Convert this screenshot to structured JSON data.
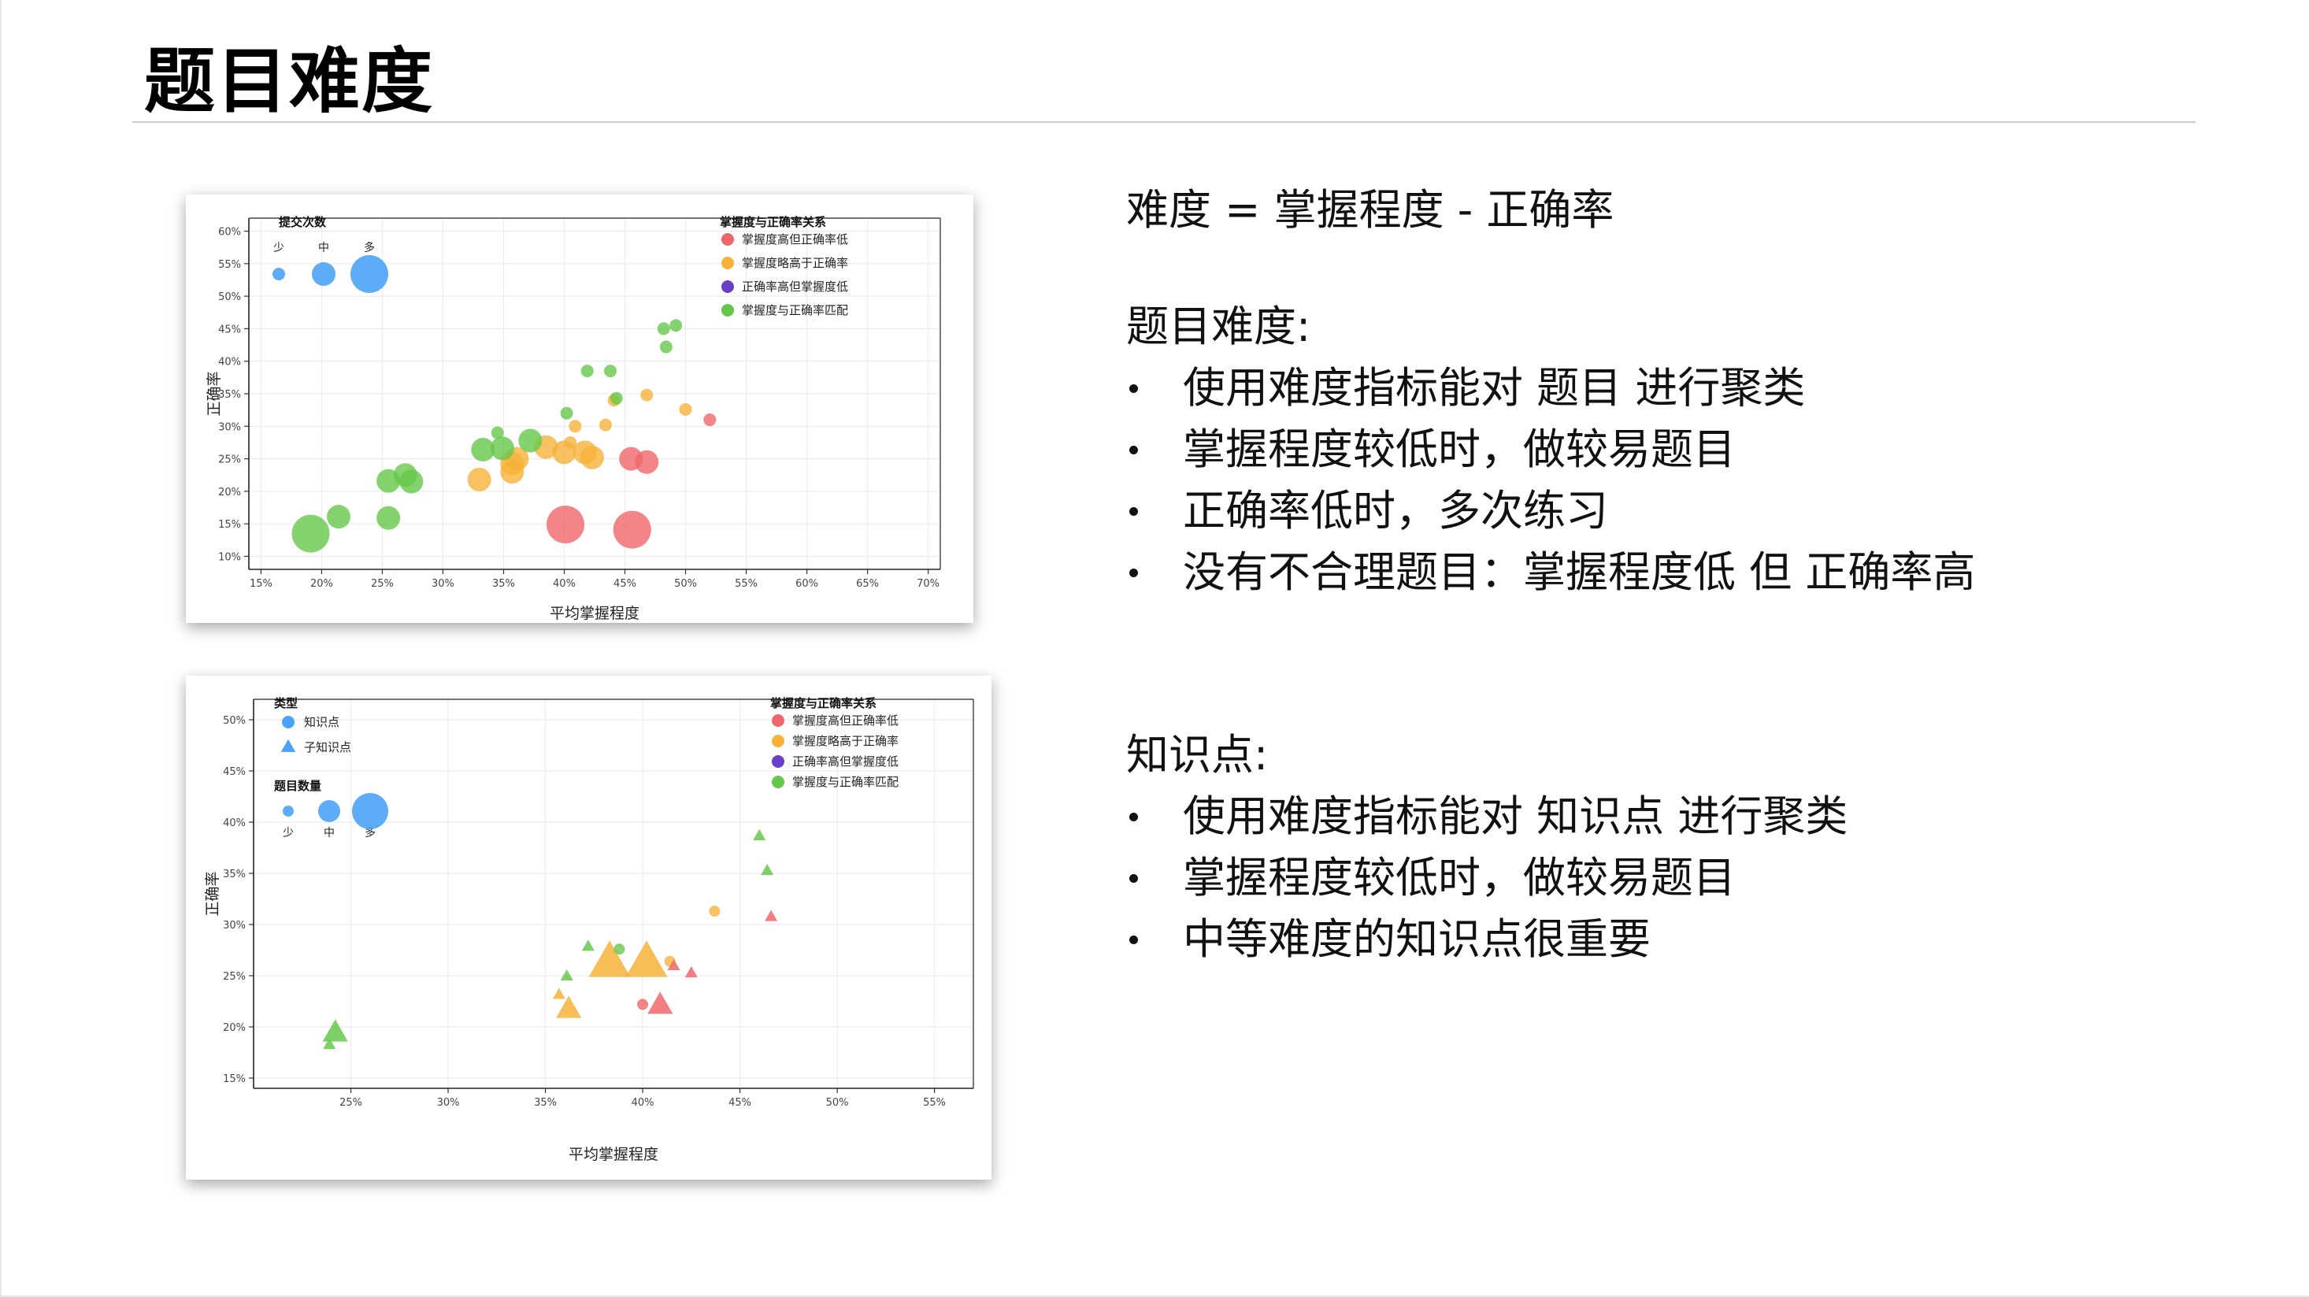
{
  "slide": {
    "title": "题目难度"
  },
  "text": {
    "formula": "难度 = 掌握程度 - 正确率",
    "difficulty_heading": "题目难度:",
    "difficulty_bullets": [
      "使用难度指标能对 题目 进行聚类",
      "掌握程度较低时，做较易题目",
      "正确率低时，多次练习",
      "没有不合理题目：掌握程度低 但 正确率高"
    ],
    "knowledge_heading": "知识点:",
    "knowledge_bullets": [
      "使用难度指标能对 知识点 进行聚类",
      "掌握程度较低时，做较易题目",
      "中等难度的知识点很重要"
    ]
  },
  "colors": {
    "red": "#f0676b",
    "orange": "#f6b23a",
    "purple": "#6a3fc7",
    "green": "#66c84a",
    "blue": "#4aa3f7"
  },
  "chart_data": [
    {
      "type": "scatter",
      "title": "",
      "xlabel": "平均掌握程度",
      "ylabel": "正确率",
      "xlim": [
        14,
        71
      ],
      "ylim": [
        8,
        62
      ],
      "x_ticks": [
        "15%",
        "20%",
        "25%",
        "30%",
        "35%",
        "40%",
        "45%",
        "50%",
        "55%",
        "60%",
        "65%",
        "70%"
      ],
      "y_ticks": [
        "10%",
        "15%",
        "20%",
        "25%",
        "30%",
        "35%",
        "40%",
        "45%",
        "50%",
        "55%",
        "60%"
      ],
      "grid": true,
      "size_legend": {
        "title": "提交次数",
        "labels": [
          "少",
          "中",
          "多"
        ],
        "color": "blue"
      },
      "color_legend": {
        "title": "掌握度与正确率关系",
        "position": "top-right",
        "entries": [
          {
            "label": "掌握度高但正确率低",
            "color": "red"
          },
          {
            "label": "掌握度略高于正确率",
            "color": "orange"
          },
          {
            "label": "正确率高但掌握度低",
            "color": "purple"
          },
          {
            "label": "掌握度与正确率匹配",
            "color": "green"
          }
        ]
      },
      "points": [
        {
          "x": 40.1,
          "y": 14.9,
          "size": 3,
          "color": "red"
        },
        {
          "x": 45.6,
          "y": 14.1,
          "size": 3,
          "color": "red"
        },
        {
          "x": 45.5,
          "y": 25.0,
          "size": 2,
          "color": "red"
        },
        {
          "x": 46.8,
          "y": 24.5,
          "size": 2,
          "color": "red"
        },
        {
          "x": 52.0,
          "y": 31.0,
          "size": 1,
          "color": "red"
        },
        {
          "x": 33.0,
          "y": 21.8,
          "size": 2,
          "color": "orange"
        },
        {
          "x": 35.7,
          "y": 23.0,
          "size": 2,
          "color": "orange"
        },
        {
          "x": 35.7,
          "y": 24.3,
          "size": 2,
          "color": "orange"
        },
        {
          "x": 36.1,
          "y": 25.0,
          "size": 2,
          "color": "orange"
        },
        {
          "x": 38.5,
          "y": 26.8,
          "size": 2,
          "color": "orange"
        },
        {
          "x": 40.0,
          "y": 26.0,
          "size": 2,
          "color": "orange"
        },
        {
          "x": 40.5,
          "y": 27.5,
          "size": 1,
          "color": "orange"
        },
        {
          "x": 40.9,
          "y": 30.0,
          "size": 1,
          "color": "orange"
        },
        {
          "x": 41.7,
          "y": 26.0,
          "size": 2,
          "color": "orange"
        },
        {
          "x": 42.3,
          "y": 25.2,
          "size": 2,
          "color": "orange"
        },
        {
          "x": 43.4,
          "y": 30.2,
          "size": 1,
          "color": "orange"
        },
        {
          "x": 44.1,
          "y": 34.0,
          "size": 1,
          "color": "orange"
        },
        {
          "x": 46.8,
          "y": 34.8,
          "size": 1,
          "color": "orange"
        },
        {
          "x": 50.0,
          "y": 32.6,
          "size": 1,
          "color": "orange"
        },
        {
          "x": 19.1,
          "y": 13.5,
          "size": 3,
          "color": "green"
        },
        {
          "x": 21.4,
          "y": 16.1,
          "size": 2,
          "color": "green"
        },
        {
          "x": 25.5,
          "y": 15.9,
          "size": 2,
          "color": "green"
        },
        {
          "x": 25.5,
          "y": 21.6,
          "size": 2,
          "color": "green"
        },
        {
          "x": 26.9,
          "y": 22.5,
          "size": 2,
          "color": "green"
        },
        {
          "x": 27.4,
          "y": 21.5,
          "size": 2,
          "color": "green"
        },
        {
          "x": 33.3,
          "y": 26.4,
          "size": 2,
          "color": "green"
        },
        {
          "x": 34.5,
          "y": 29.0,
          "size": 1,
          "color": "green"
        },
        {
          "x": 34.9,
          "y": 26.6,
          "size": 2,
          "color": "green"
        },
        {
          "x": 37.2,
          "y": 27.8,
          "size": 2,
          "color": "green"
        },
        {
          "x": 40.2,
          "y": 32.0,
          "size": 1,
          "color": "green"
        },
        {
          "x": 41.9,
          "y": 38.5,
          "size": 1,
          "color": "green"
        },
        {
          "x": 43.8,
          "y": 38.5,
          "size": 1,
          "color": "green"
        },
        {
          "x": 44.3,
          "y": 34.3,
          "size": 1,
          "color": "green"
        },
        {
          "x": 48.2,
          "y": 45.0,
          "size": 1,
          "color": "green"
        },
        {
          "x": 48.4,
          "y": 42.2,
          "size": 1,
          "color": "green"
        },
        {
          "x": 49.2,
          "y": 45.5,
          "size": 1,
          "color": "green"
        }
      ]
    },
    {
      "type": "scatter",
      "title": "",
      "xlabel": "平均掌握程度",
      "ylabel": "正确率",
      "xlim": [
        20,
        57
      ],
      "ylim": [
        14,
        52
      ],
      "x_ticks": [
        "25%",
        "30%",
        "35%",
        "40%",
        "45%",
        "50%",
        "55%"
      ],
      "y_ticks": [
        "15%",
        "20%",
        "25%",
        "30%",
        "35%",
        "40%",
        "45%",
        "50%"
      ],
      "grid": true,
      "shape_legend": {
        "title": "类型",
        "entries": [
          {
            "label": "知识点",
            "shape": "circle"
          },
          {
            "label": "子知识点",
            "shape": "triangle"
          }
        ]
      },
      "size_legend": {
        "title": "题目数量",
        "labels": [
          "少",
          "中",
          "多"
        ],
        "color": "blue"
      },
      "color_legend": {
        "title": "掌握度与正确率关系",
        "position": "top-right",
        "entries": [
          {
            "label": "掌握度高但正确率低",
            "color": "red"
          },
          {
            "label": "掌握度略高于正确率",
            "color": "orange"
          },
          {
            "label": "正确率高但掌握度低",
            "color": "purple"
          },
          {
            "label": "掌握度与正确率匹配",
            "color": "green"
          }
        ]
      },
      "points": [
        {
          "x": 24.2,
          "y": 19.5,
          "size": 2,
          "shape": "triangle",
          "color": "green"
        },
        {
          "x": 23.9,
          "y": 18.3,
          "size": 1,
          "shape": "triangle",
          "color": "green"
        },
        {
          "x": 35.7,
          "y": 23.2,
          "size": 1,
          "shape": "triangle",
          "color": "orange"
        },
        {
          "x": 36.2,
          "y": 21.8,
          "size": 2,
          "shape": "triangle",
          "color": "orange"
        },
        {
          "x": 36.1,
          "y": 25.0,
          "size": 1,
          "shape": "triangle",
          "color": "green"
        },
        {
          "x": 37.2,
          "y": 27.9,
          "size": 1,
          "shape": "triangle",
          "color": "green"
        },
        {
          "x": 38.3,
          "y": 26.4,
          "size": 3,
          "shape": "triangle",
          "color": "orange"
        },
        {
          "x": 38.8,
          "y": 27.6,
          "size": 1,
          "shape": "circle",
          "color": "green"
        },
        {
          "x": 40.2,
          "y": 26.4,
          "size": 3,
          "shape": "triangle",
          "color": "orange"
        },
        {
          "x": 40.0,
          "y": 22.2,
          "size": 1,
          "shape": "circle",
          "color": "red"
        },
        {
          "x": 40.9,
          "y": 22.2,
          "size": 2,
          "shape": "triangle",
          "color": "red"
        },
        {
          "x": 41.4,
          "y": 26.4,
          "size": 1,
          "shape": "circle",
          "color": "orange"
        },
        {
          "x": 41.6,
          "y": 26.0,
          "size": 1,
          "shape": "triangle",
          "color": "red"
        },
        {
          "x": 42.5,
          "y": 25.3,
          "size": 1,
          "shape": "triangle",
          "color": "red"
        },
        {
          "x": 43.7,
          "y": 31.3,
          "size": 1,
          "shape": "circle",
          "color": "orange"
        },
        {
          "x": 46.0,
          "y": 38.7,
          "size": 1,
          "shape": "triangle",
          "color": "green"
        },
        {
          "x": 46.4,
          "y": 35.3,
          "size": 1,
          "shape": "triangle",
          "color": "green"
        },
        {
          "x": 46.6,
          "y": 30.8,
          "size": 1,
          "shape": "triangle",
          "color": "red"
        }
      ]
    }
  ]
}
